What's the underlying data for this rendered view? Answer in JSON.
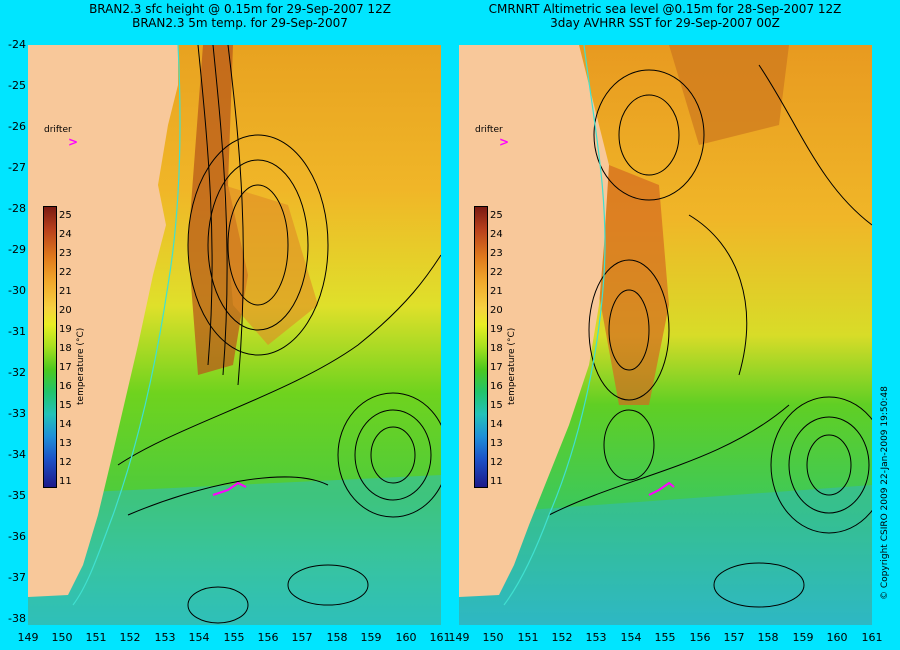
{
  "left_title": {
    "line1": "BRAN2.3 sfc height @ 0.15m for 29-Sep-2007 12Z",
    "line2": "BRAN2.3 5m temp. for 29-Sep-2007"
  },
  "right_title": {
    "line1": "CMRNRT Altimetric sea level  @0.15m  for 28-Sep-2007 12Z",
    "line2": "3day AVHRR SST for 29-Sep-2007 00Z"
  },
  "lat_labels": [
    "-24",
    "-25",
    "-26",
    "-27",
    "-28",
    "-29",
    "-30",
    "-31",
    "-32",
    "-33",
    "-34",
    "-35",
    "-36",
    "-37",
    "-38"
  ],
  "lon_labels": [
    "149",
    "150",
    "151",
    "152",
    "153",
    "154",
    "155",
    "156",
    "157",
    "158",
    "159",
    "160",
    "161"
  ],
  "right_lon_labels": [
    "149",
    "150",
    "151",
    "152",
    "153",
    "154",
    "155",
    "156",
    "157",
    "158",
    "159",
    "160",
    "161"
  ],
  "drifter_label": "drifter",
  "drifter_symbol": ">",
  "colorbar": {
    "ticks": [
      "25",
      "24",
      "23",
      "22",
      "21",
      "20",
      "19",
      "18",
      "17",
      "16",
      "15",
      "14",
      "13",
      "12",
      "11"
    ],
    "unit": "temperature (°C)"
  },
  "copyright": "© Copyright CSIRO 2009   22-Jan-2009 19:50:48",
  "colors": {
    "background": "#00e5ff",
    "land": "#f8c89a",
    "drifter": "#ff00ff",
    "contour": "#000000",
    "isobath": "#40e0d0"
  }
}
